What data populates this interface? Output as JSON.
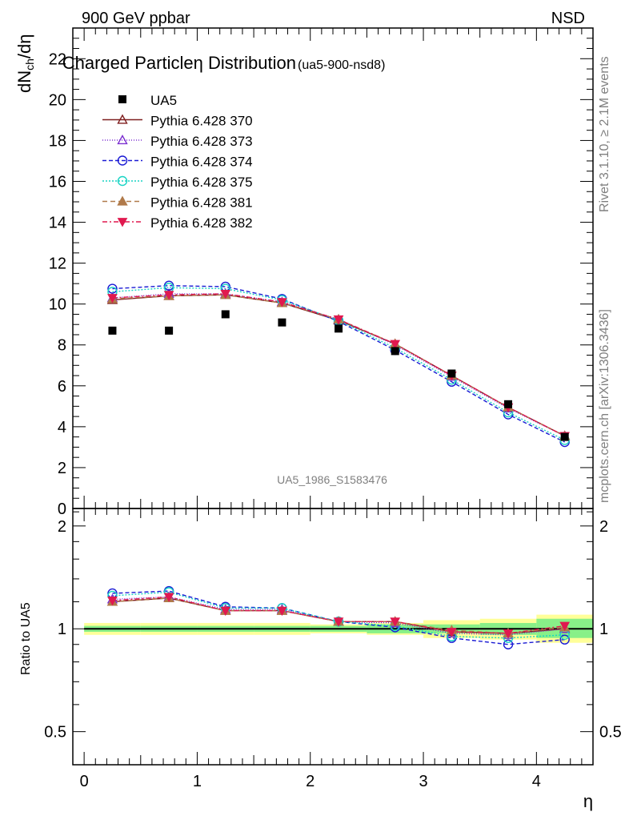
{
  "header": {
    "energy_label": "900 GeV ppbar",
    "process_label": "NSD",
    "title": "Charged Particleη Distribution",
    "title_suffix": "(ua5-900-nsd8)",
    "watermark": "UA5_1986_S1583476",
    "side_top": "Rivet 3.1.10, ≥ 2.1M events",
    "side_bottom": "mcplots.cern.ch [arXiv:1306.3436]"
  },
  "chart_data": [
    {
      "type": "scatter",
      "panel": "main",
      "xlabel": "η",
      "ylabel": "dN_ch/dη",
      "ylabel_main": "dN",
      "ylabel_sub": "ch",
      "ylabel_tail": "/dη",
      "xlim": [
        -0.1,
        4.5
      ],
      "ylim": [
        0,
        23.5
      ],
      "xticks": [
        0,
        1,
        2,
        3,
        4
      ],
      "yticks": [
        0,
        2,
        4,
        6,
        8,
        10,
        12,
        14,
        16,
        18,
        20,
        22
      ],
      "x": [
        0.25,
        0.75,
        1.25,
        1.75,
        2.25,
        2.75,
        3.25,
        3.75,
        4.25
      ],
      "legend_position": "top-left",
      "reference": {
        "name": "UA5",
        "values": [
          8.7,
          8.7,
          9.5,
          9.1,
          8.8,
          7.7,
          6.6,
          5.1,
          3.5
        ],
        "color": "#000000",
        "marker": "square"
      },
      "series": [
        {
          "name": "Pythia 6.428 370",
          "color": "#7f1f1f",
          "marker": "triangle-open",
          "dash": "",
          "values": [
            10.2,
            10.4,
            10.45,
            10.05,
            9.2,
            8.05,
            6.5,
            4.95,
            3.55
          ]
        },
        {
          "name": "Pythia 6.428 373",
          "color": "#7b2fd0",
          "marker": "triangle-open",
          "dash": "1,2",
          "values": [
            10.3,
            10.5,
            10.5,
            10.1,
            9.25,
            8.0,
            6.45,
            4.9,
            3.55
          ]
        },
        {
          "name": "Pythia 6.428 374",
          "color": "#1a1ad4",
          "marker": "circle-open",
          "dash": "5,3",
          "values": [
            10.75,
            10.9,
            10.85,
            10.25,
            9.15,
            7.75,
            6.2,
            4.6,
            3.25
          ]
        },
        {
          "name": "Pythia 6.428 375",
          "color": "#19d4c4",
          "marker": "circle-open",
          "dash": "2,2",
          "values": [
            10.6,
            10.8,
            10.75,
            10.2,
            9.2,
            7.85,
            6.3,
            4.7,
            3.35
          ]
        },
        {
          "name": "Pythia 6.428 381",
          "color": "#b07a4a",
          "marker": "triangle-filled",
          "dash": "6,4",
          "values": [
            10.25,
            10.4,
            10.45,
            10.05,
            9.25,
            8.05,
            6.5,
            4.95,
            3.55
          ]
        },
        {
          "name": "Pythia 6.428 382",
          "color": "#e0194f",
          "marker": "triangle-down-filled",
          "dash": "6,3,2,3",
          "values": [
            10.3,
            10.45,
            10.5,
            10.1,
            9.25,
            8.05,
            6.5,
            4.95,
            3.55
          ]
        }
      ]
    },
    {
      "type": "scatter",
      "panel": "ratio",
      "ylabel": "Ratio to UA5",
      "xlabel": "η",
      "xlim": [
        -0.1,
        4.5
      ],
      "ylim": [
        0.4,
        2.25
      ],
      "log_y": true,
      "yticks": [
        0.5,
        1,
        2
      ],
      "ytick_labels": [
        "0.5",
        "1",
        "2"
      ],
      "x": [
        0.25,
        0.75,
        1.25,
        1.75,
        2.25,
        2.75,
        3.25,
        3.75,
        4.25
      ],
      "reference_bands": {
        "yellow": [
          [
            0.96,
            1.04
          ],
          [
            0.96,
            1.04
          ],
          [
            0.96,
            1.04
          ],
          [
            0.96,
            1.04
          ],
          [
            0.97,
            1.03
          ],
          [
            0.96,
            1.04
          ],
          [
            0.94,
            1.06
          ],
          [
            0.93,
            1.07
          ],
          [
            0.91,
            1.1
          ]
        ],
        "green": [
          [
            0.98,
            1.02
          ],
          [
            0.98,
            1.02
          ],
          [
            0.98,
            1.02
          ],
          [
            0.98,
            1.02
          ],
          [
            0.98,
            1.02
          ],
          [
            0.97,
            1.03
          ],
          [
            0.97,
            1.03
          ],
          [
            0.96,
            1.04
          ],
          [
            0.94,
            1.07
          ]
        ]
      },
      "series": [
        {
          "name": "Pythia 6.428 370",
          "values": [
            1.2,
            1.23,
            1.13,
            1.13,
            1.05,
            1.05,
            0.98,
            0.97,
            1.0
          ]
        },
        {
          "name": "Pythia 6.428 373",
          "values": [
            1.22,
            1.24,
            1.14,
            1.14,
            1.05,
            1.04,
            0.97,
            0.96,
            1.0
          ]
        },
        {
          "name": "Pythia 6.428 374",
          "values": [
            1.27,
            1.29,
            1.16,
            1.15,
            1.05,
            1.01,
            0.94,
            0.9,
            0.93
          ]
        },
        {
          "name": "Pythia 6.428 375",
          "values": [
            1.25,
            1.28,
            1.15,
            1.15,
            1.05,
            1.02,
            0.95,
            0.94,
            0.96
          ]
        },
        {
          "name": "Pythia 6.428 381",
          "values": [
            1.2,
            1.23,
            1.13,
            1.13,
            1.05,
            1.05,
            0.99,
            0.97,
            1.01
          ]
        },
        {
          "name": "Pythia 6.428 382",
          "values": [
            1.21,
            1.24,
            1.13,
            1.13,
            1.05,
            1.05,
            0.98,
            0.97,
            1.02
          ]
        }
      ]
    }
  ]
}
